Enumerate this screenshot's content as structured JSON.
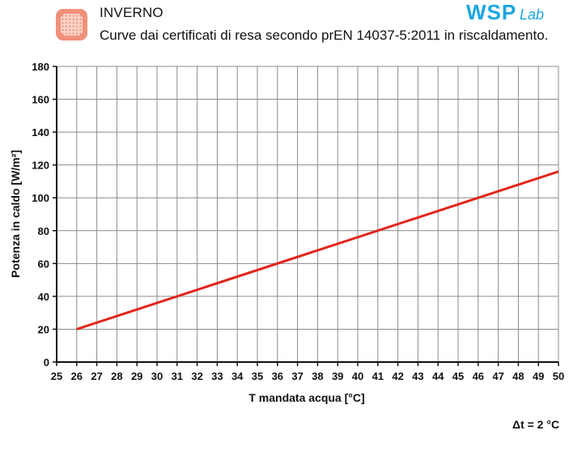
{
  "header": {
    "title": "INVERNO",
    "subtitle": "Curve dai certificati di resa secondo prEN 14037-5:2011 in riscaldamento.",
    "icon": "radiant-panel-icon",
    "icon_color": "#f0907a"
  },
  "brand": {
    "name": "WSP",
    "suffix": "Lab",
    "color": "#1aa6e0"
  },
  "note": "Δt = 2 °C",
  "colors": {
    "series": "#e1251b",
    "grid": "#8c8c8c",
    "axis": "#111111"
  },
  "chart_data": {
    "type": "line",
    "xlabel": "T mandata acqua [°C]",
    "ylabel": "Potenza in caldo [W/m²]",
    "xlim": [
      25,
      50
    ],
    "ylim": [
      0,
      180
    ],
    "xticks": [
      25,
      26,
      27,
      28,
      29,
      30,
      31,
      32,
      33,
      34,
      35,
      36,
      37,
      38,
      39,
      40,
      41,
      42,
      43,
      44,
      45,
      46,
      47,
      48,
      49,
      50
    ],
    "yticks": [
      0,
      20,
      40,
      60,
      80,
      100,
      120,
      140,
      160,
      180
    ],
    "grid": true,
    "series": [
      {
        "x": [
          26,
          50
        ],
        "y": [
          20,
          116
        ],
        "color": "#e1251b"
      }
    ]
  }
}
